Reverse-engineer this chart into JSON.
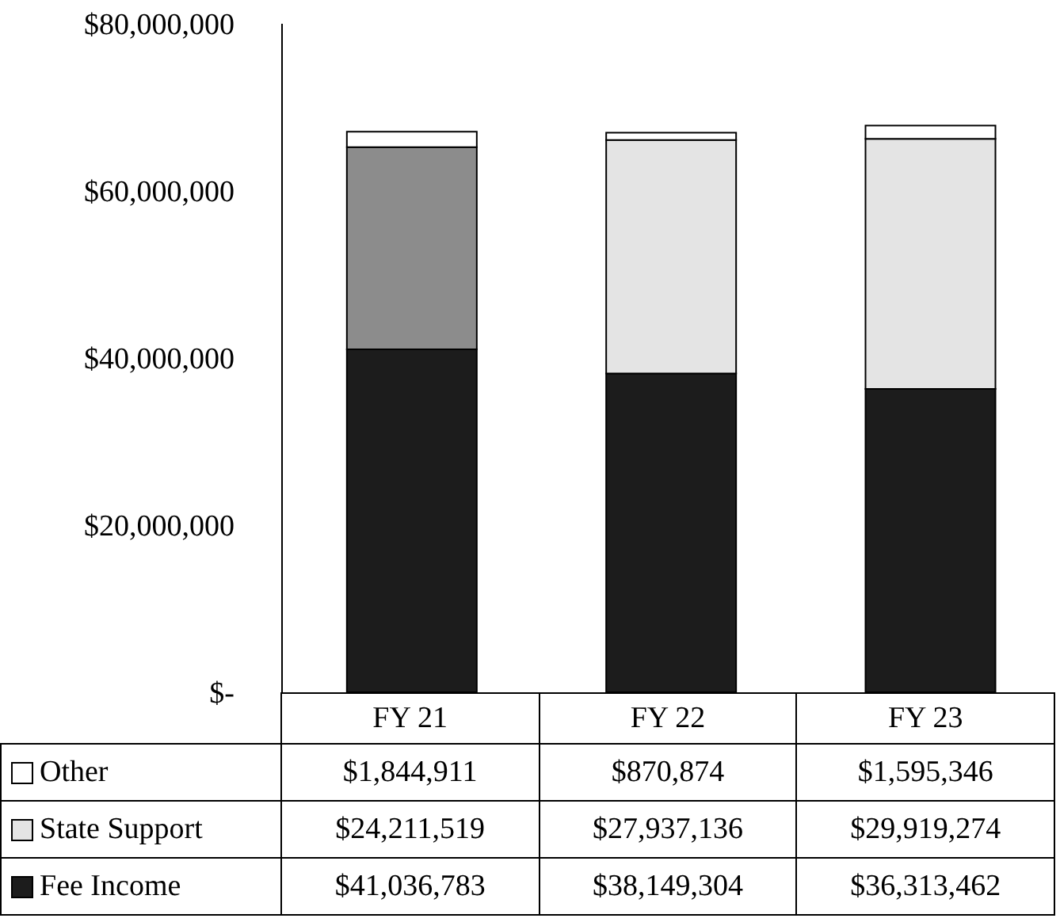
{
  "chart_data": {
    "type": "bar",
    "stacked": true,
    "categories": [
      "FY 21",
      "FY 22",
      "FY 23"
    ],
    "series": [
      {
        "name": "Fee Income",
        "color": "#1c1c1c",
        "values": [
          41036783,
          38149304,
          36313462
        ],
        "value_labels": [
          "$41,036,783",
          "$38,149,304",
          "$36,313,462"
        ]
      },
      {
        "name": "State Support",
        "color": "#e4e4e4",
        "colors": [
          "#8c8c8c",
          "#e4e4e4",
          "#e4e4e4"
        ],
        "values": [
          24211519,
          27937136,
          29919274
        ],
        "value_labels": [
          "$24,211,519",
          "$27,937,136",
          "$29,919,274"
        ]
      },
      {
        "name": "Other",
        "color": "#ffffff",
        "values": [
          1844911,
          870874,
          1595346
        ],
        "value_labels": [
          "$1,844,911",
          "$870,874",
          "$1,595,346"
        ]
      }
    ],
    "ylim": [
      0,
      80000000
    ],
    "yticks": [
      {
        "value": 0,
        "label": "$-"
      },
      {
        "value": 20000000,
        "label": "$20,000,000"
      },
      {
        "value": 40000000,
        "label": "$40,000,000"
      },
      {
        "value": 60000000,
        "label": "$60,000,000"
      },
      {
        "value": 80000000,
        "label": "$80,000,000"
      }
    ],
    "grid": false,
    "legend": "bottom"
  }
}
